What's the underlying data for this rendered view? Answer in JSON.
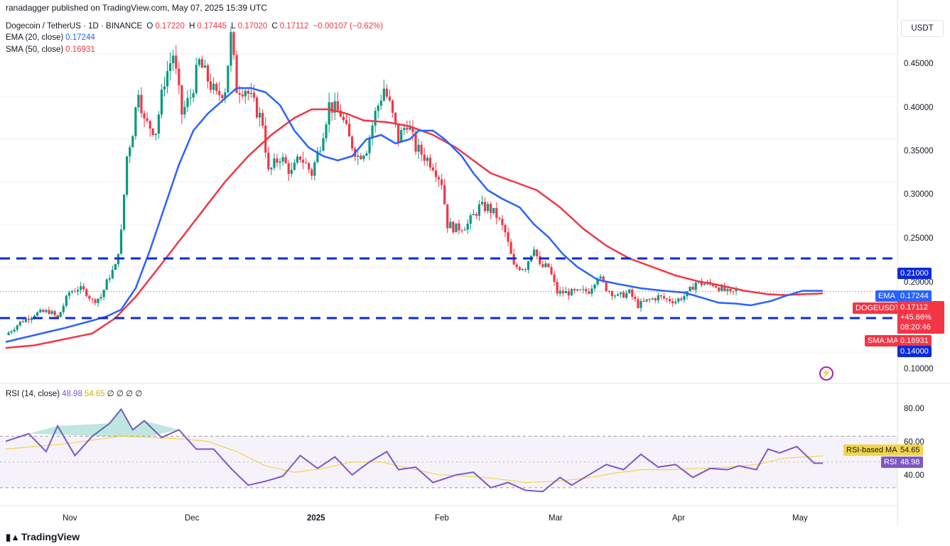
{
  "header": {
    "publisher": "ranadagger published on TradingView.com, May 07, 2025 15:39 UTC",
    "symbol": "Dogecoin / TetherUS · 1D · BINANCE",
    "o_label": "O",
    "o": "0.17220",
    "h_label": "H",
    "h": "0.17445",
    "l_label": "L",
    "l": "0.17020",
    "c_label": "C",
    "c": "0.17112",
    "change": "−0.00107 (−0.62%)",
    "ema_label": "EMA (20, close)",
    "ema_value": "0.17244",
    "sma_label": "SMA (50, close)",
    "sma_value": "0.16931",
    "rsi_label": "RSI (14, close)",
    "rsi_value": "48.98",
    "rsi_ma_value": "54.65",
    "rsi_extra": "∅ ∅ ∅ ∅"
  },
  "unit": "USDT",
  "brand": "TradingView",
  "price_axis": [
    "0.45000",
    "0.40000",
    "0.35000",
    "0.30000",
    "0.25000",
    "0.20000",
    "0.10000"
  ],
  "rsi_axis": [
    "80.00",
    "60.00",
    "40.00"
  ],
  "x_axis": [
    "Nov",
    "Dec",
    "2025",
    "Feb",
    "Mar",
    "Apr",
    "May"
  ],
  "tags": {
    "resistance": "0.21000",
    "ema_label": "EMA",
    "ema_value": "0.17244",
    "symbol_label": "DOGEUSDT",
    "price": "0.17112",
    "change_pct": "+45.66%",
    "countdown": "08:20:46",
    "sma_label": "SMA:MA",
    "sma_value": "0.16931",
    "support": "0.14000",
    "rsi_ma_label": "RSI-based MA",
    "rsi_ma_value": "54.65",
    "rsi_label": "RSI",
    "rsi_value": "48.98"
  },
  "colors": {
    "up": "#089981",
    "down": "#f23645",
    "ema": "#2962ff",
    "sma": "#f23645",
    "rsi": "#7e57c2",
    "rsi_ma": "#f2d54b",
    "levels": "#0d2bd6"
  },
  "chart_data": {
    "type": "candlestick",
    "title": "Dogecoin / TetherUS · 1D · BINANCE",
    "ylim": [
      0.08,
      0.49
    ],
    "horizontal_levels": [
      0.21,
      0.14
    ],
    "last_price": 0.17112,
    "series_points": {
      "ema20": [
        [
          0,
          0.112
        ],
        [
          10,
          0.12
        ],
        [
          20,
          0.128
        ],
        [
          30,
          0.137
        ],
        [
          35,
          0.142
        ],
        [
          40,
          0.15
        ],
        [
          45,
          0.175
        ],
        [
          50,
          0.22
        ],
        [
          55,
          0.27
        ],
        [
          60,
          0.32
        ],
        [
          65,
          0.36
        ],
        [
          70,
          0.38
        ],
        [
          75,
          0.395
        ],
        [
          80,
          0.41
        ],
        [
          85,
          0.41
        ],
        [
          90,
          0.405
        ],
        [
          95,
          0.39
        ],
        [
          100,
          0.36
        ],
        [
          105,
          0.34
        ],
        [
          110,
          0.33
        ],
        [
          115,
          0.325
        ],
        [
          120,
          0.33
        ],
        [
          125,
          0.35
        ],
        [
          130,
          0.355
        ],
        [
          135,
          0.345
        ],
        [
          140,
          0.35
        ],
        [
          143,
          0.36
        ],
        [
          148,
          0.36
        ],
        [
          152,
          0.35
        ],
        [
          158,
          0.33
        ],
        [
          162,
          0.31
        ],
        [
          167,
          0.29
        ],
        [
          172,
          0.28
        ],
        [
          178,
          0.27
        ],
        [
          183,
          0.25
        ],
        [
          188,
          0.235
        ],
        [
          193,
          0.215
        ],
        [
          198,
          0.2
        ],
        [
          205,
          0.185
        ],
        [
          212,
          0.18
        ],
        [
          220,
          0.175
        ],
        [
          228,
          0.172
        ],
        [
          235,
          0.17
        ],
        [
          240,
          0.165
        ],
        [
          247,
          0.158
        ],
        [
          253,
          0.157
        ],
        [
          258,
          0.155
        ],
        [
          265,
          0.16
        ],
        [
          270,
          0.166
        ],
        [
          276,
          0.172
        ],
        [
          283,
          0.172
        ]
      ],
      "sma50": [
        [
          0,
          0.105
        ],
        [
          10,
          0.108
        ],
        [
          20,
          0.115
        ],
        [
          30,
          0.122
        ],
        [
          38,
          0.14
        ],
        [
          45,
          0.165
        ],
        [
          52,
          0.195
        ],
        [
          60,
          0.23
        ],
        [
          68,
          0.265
        ],
        [
          76,
          0.3
        ],
        [
          84,
          0.33
        ],
        [
          92,
          0.355
        ],
        [
          100,
          0.375
        ],
        [
          106,
          0.385
        ],
        [
          112,
          0.385
        ],
        [
          118,
          0.38
        ],
        [
          124,
          0.372
        ],
        [
          132,
          0.37
        ],
        [
          140,
          0.365
        ],
        [
          148,
          0.355
        ],
        [
          156,
          0.34
        ],
        [
          162,
          0.325
        ],
        [
          168,
          0.31
        ],
        [
          176,
          0.3
        ],
        [
          184,
          0.29
        ],
        [
          192,
          0.27
        ],
        [
          200,
          0.245
        ],
        [
          208,
          0.225
        ],
        [
          216,
          0.21
        ],
        [
          224,
          0.2
        ],
        [
          232,
          0.19
        ],
        [
          240,
          0.183
        ],
        [
          248,
          0.178
        ],
        [
          256,
          0.172
        ],
        [
          264,
          0.168
        ],
        [
          270,
          0.167
        ],
        [
          276,
          0.168
        ],
        [
          283,
          0.169
        ]
      ]
    },
    "price_path": [
      [
        0,
        0.12
      ],
      [
        5,
        0.135
      ],
      [
        10,
        0.145
      ],
      [
        15,
        0.148
      ],
      [
        18,
        0.14
      ],
      [
        22,
        0.17
      ],
      [
        25,
        0.175
      ],
      [
        28,
        0.17
      ],
      [
        30,
        0.16
      ],
      [
        33,
        0.165
      ],
      [
        36,
        0.19
      ],
      [
        38,
        0.2
      ],
      [
        40,
        0.24
      ],
      [
        42,
        0.33
      ],
      [
        44,
        0.36
      ],
      [
        46,
        0.41
      ],
      [
        48,
        0.37
      ],
      [
        52,
        0.36
      ],
      [
        55,
        0.42
      ],
      [
        58,
        0.45
      ],
      [
        61,
        0.38
      ],
      [
        64,
        0.4
      ],
      [
        67,
        0.44
      ],
      [
        70,
        0.42
      ],
      [
        73,
        0.4
      ],
      [
        76,
        0.41
      ],
      [
        78,
        0.47
      ],
      [
        80,
        0.41
      ],
      [
        83,
        0.41
      ],
      [
        86,
        0.39
      ],
      [
        89,
        0.37
      ],
      [
        91,
        0.31
      ],
      [
        95,
        0.33
      ],
      [
        99,
        0.31
      ],
      [
        102,
        0.33
      ],
      [
        106,
        0.31
      ],
      [
        109,
        0.345
      ],
      [
        112,
        0.39
      ],
      [
        116,
        0.38
      ],
      [
        119,
        0.35
      ],
      [
        122,
        0.33
      ],
      [
        125,
        0.34
      ],
      [
        128,
        0.38
      ],
      [
        131,
        0.41
      ],
      [
        133,
        0.39
      ],
      [
        136,
        0.35
      ],
      [
        139,
        0.37
      ],
      [
        142,
        0.34
      ],
      [
        145,
        0.33
      ],
      [
        148,
        0.32
      ],
      [
        151,
        0.3
      ],
      [
        153,
        0.25
      ],
      [
        156,
        0.245
      ],
      [
        160,
        0.25
      ],
      [
        164,
        0.27
      ],
      [
        167,
        0.27
      ],
      [
        170,
        0.26
      ],
      [
        173,
        0.24
      ],
      [
        176,
        0.2
      ],
      [
        180,
        0.2
      ],
      [
        183,
        0.225
      ],
      [
        185,
        0.2
      ],
      [
        188,
        0.2
      ],
      [
        191,
        0.17
      ],
      [
        194,
        0.17
      ],
      [
        198,
        0.17
      ],
      [
        202,
        0.172
      ],
      [
        205,
        0.19
      ],
      [
        208,
        0.175
      ],
      [
        212,
        0.165
      ],
      [
        216,
        0.17
      ],
      [
        219,
        0.155
      ],
      [
        222,
        0.16
      ],
      [
        226,
        0.165
      ],
      [
        229,
        0.162
      ],
      [
        232,
        0.16
      ],
      [
        236,
        0.168
      ],
      [
        239,
        0.182
      ],
      [
        242,
        0.18
      ],
      [
        245,
        0.18
      ],
      [
        248,
        0.174
      ],
      [
        251,
        0.168
      ],
      [
        253,
        0.172
      ]
    ],
    "rsi": {
      "name": "RSI (14, close)",
      "last": 48.98,
      "ma_last": 54.65,
      "bands": [
        70,
        30
      ],
      "mid": 50,
      "points": [
        [
          0,
          66
        ],
        [
          8,
          72
        ],
        [
          14,
          58
        ],
        [
          18,
          78
        ],
        [
          24,
          55
        ],
        [
          30,
          70
        ],
        [
          36,
          80
        ],
        [
          40,
          91
        ],
        [
          44,
          75
        ],
        [
          48,
          82
        ],
        [
          54,
          69
        ],
        [
          60,
          75
        ],
        [
          66,
          60
        ],
        [
          72,
          60
        ],
        [
          78,
          45
        ],
        [
          84,
          32
        ],
        [
          90,
          35
        ],
        [
          96,
          39
        ],
        [
          102,
          55
        ],
        [
          108,
          45
        ],
        [
          114,
          54
        ],
        [
          120,
          40
        ],
        [
          126,
          50
        ],
        [
          132,
          58
        ],
        [
          136,
          44
        ],
        [
          142,
          46
        ],
        [
          148,
          34
        ],
        [
          156,
          40
        ],
        [
          162,
          42
        ],
        [
          168,
          30
        ],
        [
          174,
          34
        ],
        [
          180,
          28
        ],
        [
          186,
          27
        ],
        [
          192,
          38
        ],
        [
          196,
          32
        ],
        [
          202,
          40
        ],
        [
          208,
          48
        ],
        [
          214,
          44
        ],
        [
          220,
          56
        ],
        [
          226,
          46
        ],
        [
          232,
          48
        ],
        [
          238,
          38
        ],
        [
          244,
          45
        ],
        [
          250,
          44
        ],
        [
          254,
          47
        ],
        [
          260,
          44
        ],
        [
          264,
          60
        ],
        [
          268,
          57
        ],
        [
          274,
          62
        ],
        [
          280,
          49
        ],
        [
          283,
          49
        ]
      ],
      "ma_points": [
        [
          0,
          60
        ],
        [
          20,
          64
        ],
        [
          40,
          70
        ],
        [
          60,
          68
        ],
        [
          70,
          66
        ],
        [
          80,
          58
        ],
        [
          90,
          47
        ],
        [
          100,
          42
        ],
        [
          110,
          45
        ],
        [
          120,
          50
        ],
        [
          130,
          50
        ],
        [
          140,
          45
        ],
        [
          150,
          40
        ],
        [
          160,
          39
        ],
        [
          170,
          37
        ],
        [
          180,
          34
        ],
        [
          190,
          35
        ],
        [
          200,
          37
        ],
        [
          210,
          41
        ],
        [
          220,
          44
        ],
        [
          230,
          44
        ],
        [
          240,
          45
        ],
        [
          250,
          46
        ],
        [
          260,
          48
        ],
        [
          270,
          53
        ],
        [
          283,
          54.65
        ]
      ]
    }
  }
}
